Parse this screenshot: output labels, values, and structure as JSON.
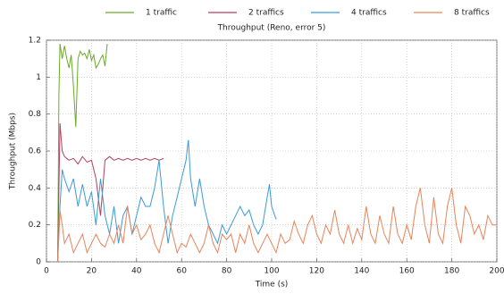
{
  "chart_data": {
    "type": "line",
    "title": "Throughput (Reno, error 5)",
    "x_label": "Time (s)",
    "y_label": "Throughput (Mbps)",
    "xlim": [
      0,
      200
    ],
    "ylim": [
      0,
      1.2
    ],
    "xticks": [
      0,
      20,
      40,
      60,
      80,
      100,
      120,
      140,
      160,
      180,
      200
    ],
    "yticks": [
      0,
      0.2,
      0.4,
      0.6,
      0.8,
      1,
      1.2
    ],
    "grid": true,
    "legend": "top",
    "series": [
      {
        "name": "1 traffic",
        "color": "#6aaa28",
        "x": [
          5,
          5.5,
          6,
          7,
          8,
          9,
          10,
          11,
          12,
          13,
          14,
          15,
          16,
          17,
          18,
          19,
          20,
          21,
          22,
          23,
          24,
          25,
          26,
          27
        ],
        "values": [
          0,
          0.9,
          1.18,
          1.1,
          1.17,
          1.1,
          1.05,
          1.12,
          0.95,
          0.73,
          1.1,
          1.14,
          1.12,
          1.13,
          1.1,
          1.15,
          1.09,
          1.12,
          1.05,
          1.07,
          1.1,
          1.12,
          1.06,
          1.18
        ]
      },
      {
        "name": "2 traffics",
        "color": "#b5405a",
        "x": [
          5,
          6,
          7,
          8,
          9,
          10,
          12,
          14,
          16,
          18,
          20,
          22,
          24,
          26,
          28,
          30,
          32,
          34,
          36,
          38,
          40,
          42,
          44,
          46,
          48,
          50,
          52
        ],
        "values": [
          0,
          0.75,
          0.6,
          0.57,
          0.56,
          0.55,
          0.56,
          0.53,
          0.57,
          0.54,
          0.55,
          0.45,
          0.25,
          0.55,
          0.57,
          0.55,
          0.56,
          0.55,
          0.56,
          0.55,
          0.56,
          0.55,
          0.56,
          0.55,
          0.56,
          0.55,
          0.56
        ]
      },
      {
        "name": "4 traffics",
        "color": "#3a9ad9",
        "x": [
          5,
          6,
          7,
          8,
          10,
          12,
          14,
          16,
          18,
          20,
          22,
          24,
          26,
          28,
          30,
          32,
          34,
          36,
          38,
          40,
          42,
          44,
          46,
          48,
          50,
          52,
          54,
          56,
          58,
          60,
          62,
          63,
          64,
          66,
          68,
          70,
          72,
          74,
          76,
          78,
          80,
          82,
          84,
          86,
          88,
          90,
          92,
          94,
          96,
          98,
          99,
          100,
          102
        ],
        "values": [
          0,
          0.3,
          0.5,
          0.45,
          0.38,
          0.45,
          0.3,
          0.42,
          0.3,
          0.38,
          0.2,
          0.45,
          0.25,
          0.15,
          0.3,
          0.1,
          0.25,
          0.3,
          0.15,
          0.25,
          0.35,
          0.3,
          0.3,
          0.4,
          0.55,
          0.3,
          0.1,
          0.25,
          0.35,
          0.45,
          0.55,
          0.66,
          0.45,
          0.3,
          0.45,
          0.3,
          0.2,
          0.15,
          0.1,
          0.2,
          0.15,
          0.2,
          0.25,
          0.3,
          0.25,
          0.28,
          0.2,
          0.15,
          0.2,
          0.35,
          0.42,
          0.3,
          0.23
        ]
      },
      {
        "name": "8 traffics",
        "color": "#e8835a",
        "x": [
          5,
          6,
          7,
          8,
          10,
          12,
          14,
          16,
          18,
          20,
          22,
          24,
          26,
          28,
          30,
          32,
          34,
          36,
          38,
          40,
          42,
          44,
          46,
          48,
          50,
          52,
          54,
          56,
          58,
          60,
          62,
          64,
          66,
          68,
          70,
          72,
          74,
          76,
          78,
          80,
          82,
          84,
          86,
          88,
          90,
          92,
          94,
          96,
          98,
          100,
          102,
          104,
          106,
          108,
          110,
          112,
          114,
          116,
          118,
          120,
          122,
          124,
          126,
          128,
          130,
          132,
          134,
          136,
          138,
          140,
          142,
          144,
          146,
          148,
          150,
          152,
          154,
          156,
          158,
          160,
          162,
          164,
          166,
          168,
          170,
          172,
          174,
          176,
          178,
          180,
          182,
          184,
          186,
          188,
          190,
          192,
          194,
          196,
          198,
          200
        ],
        "values": [
          0,
          0.28,
          0.2,
          0.1,
          0.15,
          0.05,
          0.1,
          0.15,
          0.05,
          0.1,
          0.15,
          0.1,
          0.08,
          0.15,
          0.1,
          0.2,
          0.1,
          0.3,
          0.15,
          0.2,
          0.12,
          0.15,
          0.2,
          0.1,
          0.05,
          0.15,
          0.25,
          0.15,
          0.05,
          0.1,
          0.08,
          0.15,
          0.1,
          0.05,
          0.1,
          0.2,
          0.1,
          0.05,
          0.15,
          0.12,
          0.15,
          0.05,
          0.15,
          0.1,
          0.2,
          0.1,
          0.05,
          0.1,
          0.15,
          0.1,
          0.05,
          0.15,
          0.1,
          0.12,
          0.22,
          0.15,
          0.1,
          0.2,
          0.25,
          0.15,
          0.1,
          0.2,
          0.15,
          0.28,
          0.15,
          0.1,
          0.2,
          0.1,
          0.18,
          0.12,
          0.3,
          0.15,
          0.1,
          0.25,
          0.15,
          0.1,
          0.3,
          0.15,
          0.1,
          0.2,
          0.12,
          0.3,
          0.4,
          0.2,
          0.1,
          0.35,
          0.15,
          0.1,
          0.3,
          0.4,
          0.2,
          0.1,
          0.3,
          0.25,
          0.15,
          0.2,
          0.12,
          0.25,
          0.2,
          0.2
        ]
      }
    ]
  }
}
